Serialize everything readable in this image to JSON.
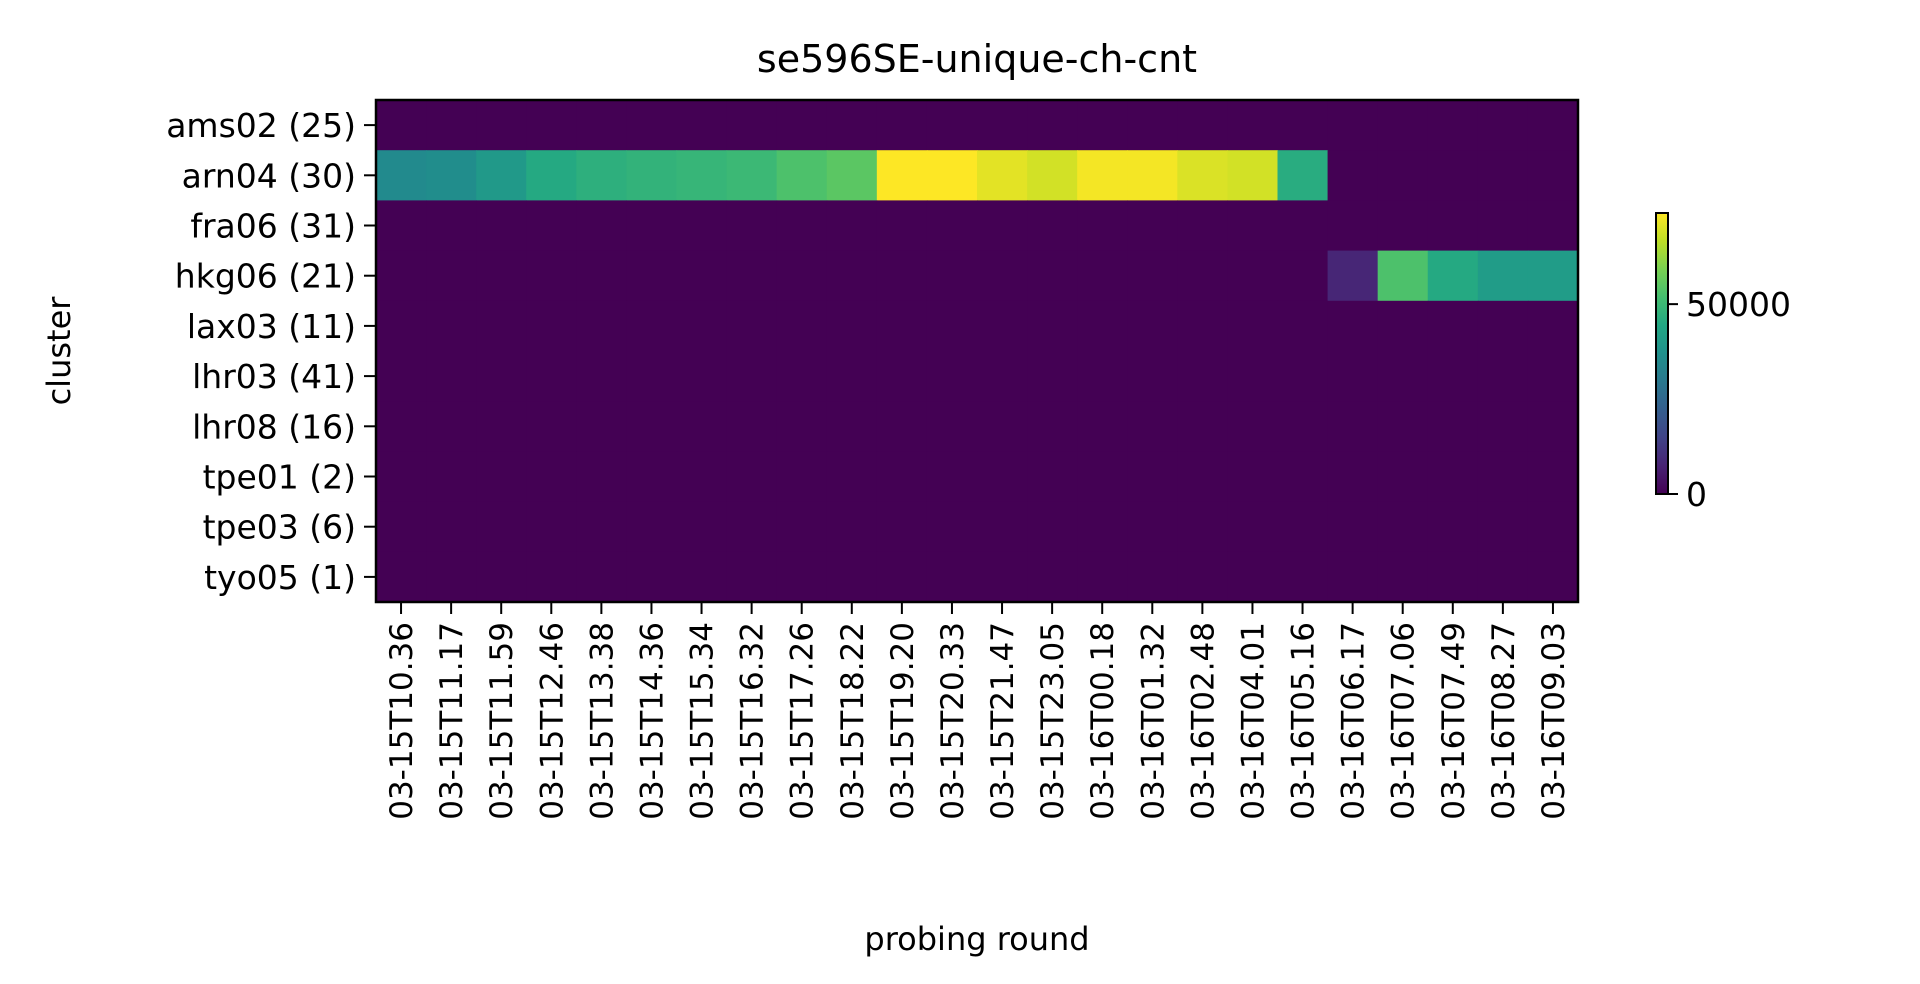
{
  "chart_data": {
    "type": "heatmap",
    "title": "se596SE-unique-ch-cnt",
    "xlabel": "probing round",
    "ylabel": "cluster",
    "x_categories": [
      "03-15T10.36",
      "03-15T11.17",
      "03-15T11.59",
      "03-15T12.46",
      "03-15T13.38",
      "03-15T14.36",
      "03-15T15.34",
      "03-15T16.32",
      "03-15T17.26",
      "03-15T18.22",
      "03-15T19.20",
      "03-15T20.33",
      "03-15T21.47",
      "03-15T23.05",
      "03-16T00.18",
      "03-16T01.32",
      "03-16T02.48",
      "03-16T04.01",
      "03-16T05.16",
      "03-16T06.17",
      "03-16T07.06",
      "03-16T07.49",
      "03-16T08.27",
      "03-16T09.03"
    ],
    "y_categories": [
      "ams02 (25)",
      "arn04 (30)",
      "fra06 (31)",
      "hkg06 (21)",
      "lax03 (11)",
      "lhr03 (41)",
      "lhr08 (16)",
      "tpe01 (2)",
      "tpe03 (6)",
      "tyo05 (1)"
    ],
    "values": [
      [
        0,
        0,
        0,
        0,
        0,
        0,
        0,
        0,
        0,
        0,
        0,
        0,
        0,
        0,
        0,
        0,
        0,
        0,
        0,
        0,
        0,
        0,
        0,
        0
      ],
      [
        35000,
        36000,
        40000,
        45000,
        47000,
        48000,
        49000,
        50000,
        53000,
        55000,
        74000,
        74000,
        71000,
        69000,
        73000,
        73000,
        70000,
        69000,
        46000,
        0,
        0,
        0,
        0,
        0
      ],
      [
        0,
        0,
        0,
        0,
        0,
        0,
        0,
        0,
        0,
        0,
        0,
        0,
        0,
        0,
        0,
        0,
        0,
        0,
        0,
        0,
        0,
        0,
        0,
        0
      ],
      [
        0,
        0,
        0,
        0,
        0,
        0,
        0,
        0,
        0,
        0,
        0,
        0,
        0,
        0,
        0,
        0,
        0,
        0,
        0,
        8000,
        53000,
        45000,
        41000,
        41000
      ],
      [
        0,
        0,
        0,
        0,
        0,
        0,
        0,
        0,
        0,
        0,
        0,
        0,
        0,
        0,
        0,
        0,
        0,
        0,
        0,
        0,
        0,
        0,
        0,
        0
      ],
      [
        0,
        0,
        0,
        0,
        0,
        0,
        0,
        0,
        0,
        0,
        0,
        0,
        0,
        0,
        0,
        0,
        0,
        0,
        0,
        0,
        0,
        0,
        0,
        0
      ],
      [
        0,
        0,
        0,
        0,
        0,
        0,
        0,
        0,
        0,
        0,
        0,
        0,
        0,
        0,
        0,
        0,
        0,
        0,
        0,
        0,
        0,
        0,
        0,
        0
      ],
      [
        0,
        0,
        0,
        0,
        0,
        0,
        0,
        0,
        0,
        0,
        0,
        0,
        0,
        0,
        0,
        0,
        0,
        0,
        0,
        0,
        0,
        0,
        0,
        0
      ],
      [
        0,
        0,
        0,
        0,
        0,
        0,
        0,
        0,
        0,
        0,
        0,
        0,
        0,
        0,
        0,
        0,
        0,
        0,
        0,
        0,
        0,
        0,
        0,
        0
      ],
      [
        0,
        0,
        0,
        0,
        0,
        0,
        0,
        0,
        0,
        0,
        0,
        0,
        0,
        0,
        0,
        0,
        0,
        0,
        0,
        0,
        0,
        0,
        0,
        0
      ]
    ],
    "color_range": [
      0,
      74000
    ],
    "colormap": "viridis",
    "colorbar": {
      "ticks": [
        0,
        50000
      ],
      "tick_labels": [
        "0",
        "50000"
      ]
    },
    "grid": false
  }
}
